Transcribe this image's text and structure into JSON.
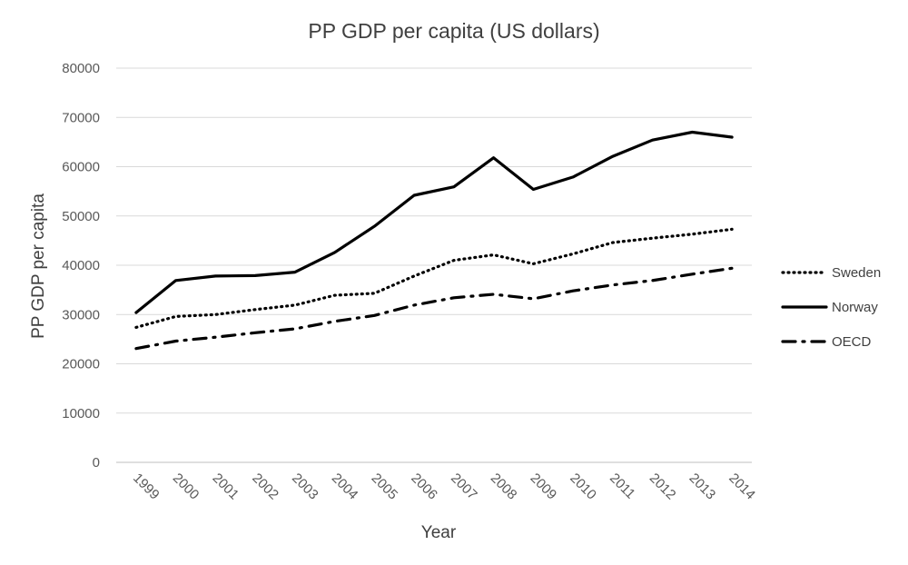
{
  "chart_data": {
    "type": "line",
    "title": "PP GDP per capita (US dollars)",
    "xlabel": "Year",
    "ylabel": "PP GDP per capita",
    "ylim": [
      0,
      80000
    ],
    "yticks": [
      "0",
      "10000",
      "20000",
      "30000",
      "40000",
      "50000",
      "60000",
      "70000",
      "80000"
    ],
    "categories": [
      "1999",
      "2000",
      "2001",
      "2002",
      "2003",
      "2004",
      "2005",
      "2006",
      "2007",
      "2008",
      "2009",
      "2010",
      "2011",
      "2012",
      "2013",
      "2014"
    ],
    "grid": true,
    "legend_position": "right",
    "series": [
      {
        "name": "Sweden",
        "style": "dotted",
        "color": "#000000",
        "values": [
          27400,
          29600,
          30000,
          31000,
          31900,
          33900,
          34300,
          37800,
          41000,
          42100,
          40300,
          42300,
          44600,
          45500,
          46300,
          47300
        ]
      },
      {
        "name": "Norway",
        "style": "solid",
        "color": "#000000",
        "values": [
          30400,
          36900,
          37800,
          37900,
          38600,
          42600,
          47900,
          54200,
          55900,
          61800,
          55400,
          57900,
          62100,
          65400,
          67000,
          66000
        ]
      },
      {
        "name": "OECD",
        "style": "dashdot",
        "color": "#000000",
        "values": [
          23100,
          24600,
          25400,
          26300,
          27100,
          28600,
          29800,
          31900,
          33400,
          34100,
          33200,
          34800,
          36000,
          36900,
          38200,
          39400
        ]
      }
    ]
  }
}
